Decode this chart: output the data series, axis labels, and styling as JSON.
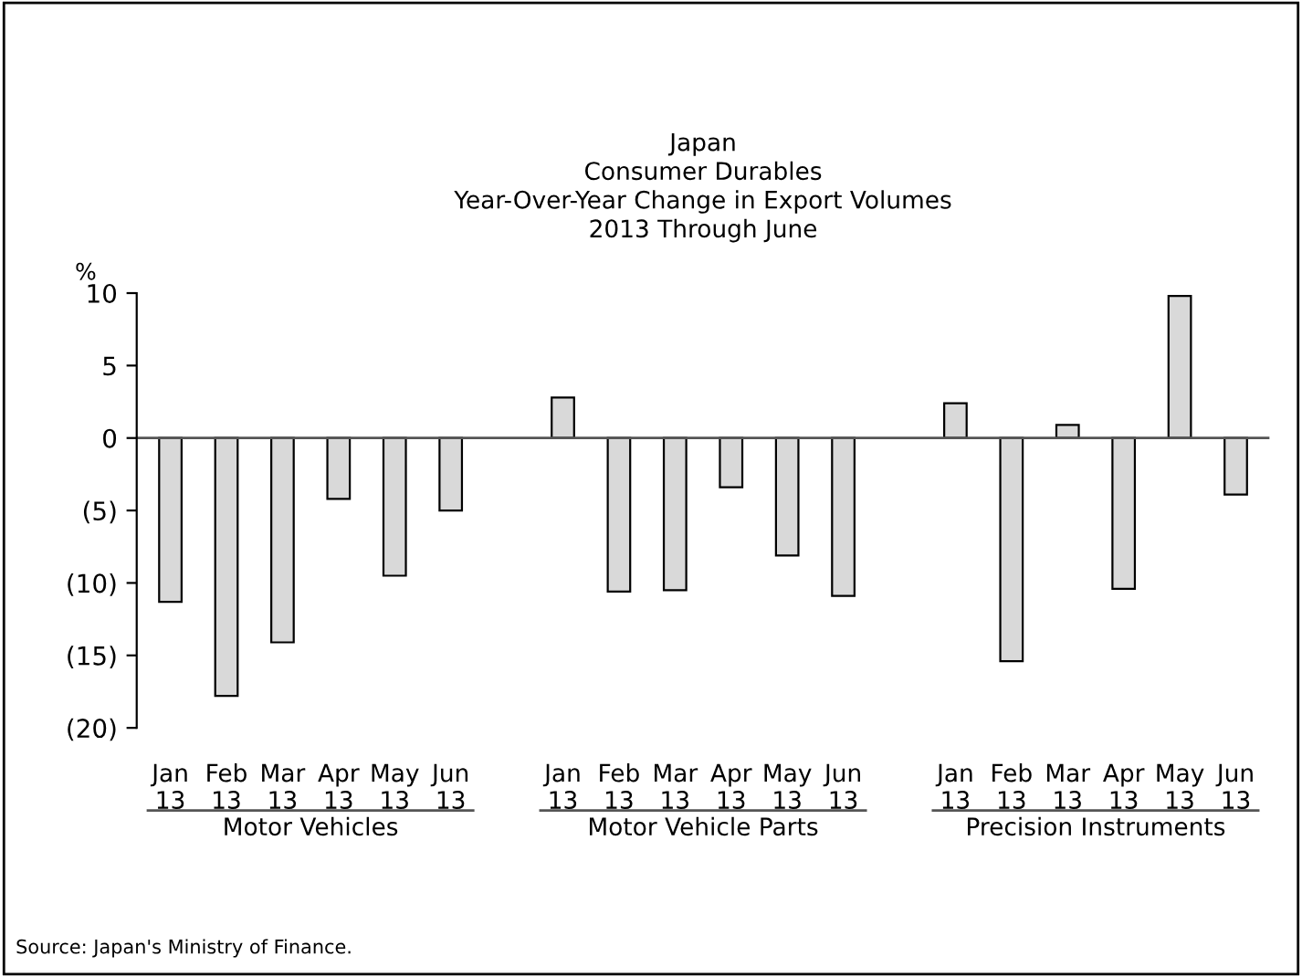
{
  "chart_data": {
    "type": "bar",
    "title": "Japan\nConsumer Durables\nYear-Over-Year Change in Export Volumes\n2013 Through June",
    "ylabel": "%",
    "categories": [
      "Jan\n13",
      "Feb\n13",
      "Mar\n13",
      "Apr\n13",
      "May\n13",
      "Jun\n13",
      null,
      "Jan\n13",
      "Feb\n13",
      "Mar\n13",
      "Apr\n13",
      "May\n13",
      "Jun\n13",
      null,
      "Jan\n13",
      "Feb\n13",
      "Mar\n13",
      "Apr\n13",
      "May\n13",
      "Jun\n13"
    ],
    "values": [
      -11.3,
      -17.8,
      -14.1,
      -4.2,
      -9.5,
      -5.0,
      null,
      2.8,
      -10.6,
      -10.5,
      -3.4,
      -8.1,
      -10.9,
      null,
      2.4,
      -15.4,
      0.9,
      -10.4,
      9.8,
      -3.9
    ],
    "color": "#d9d9d9",
    "ylim": [
      -20,
      10
    ],
    "yticks": [
      {
        "value": -20,
        "label": "(20)"
      },
      {
        "value": -15,
        "label": "(15)"
      },
      {
        "value": -10,
        "label": "(10)"
      },
      {
        "value": -5,
        "label": "(5)"
      },
      0,
      5,
      10
    ],
    "grid": false,
    "legend": false,
    "ref_lines": [
      {
        "axis": "y",
        "value": 0,
        "color": "#555555"
      }
    ],
    "annotations": [
      "Motor Vehicles",
      "Motor Vehicle Parts",
      "Precision Instruments",
      "Source: Japan's Ministry of Finance."
    ]
  }
}
